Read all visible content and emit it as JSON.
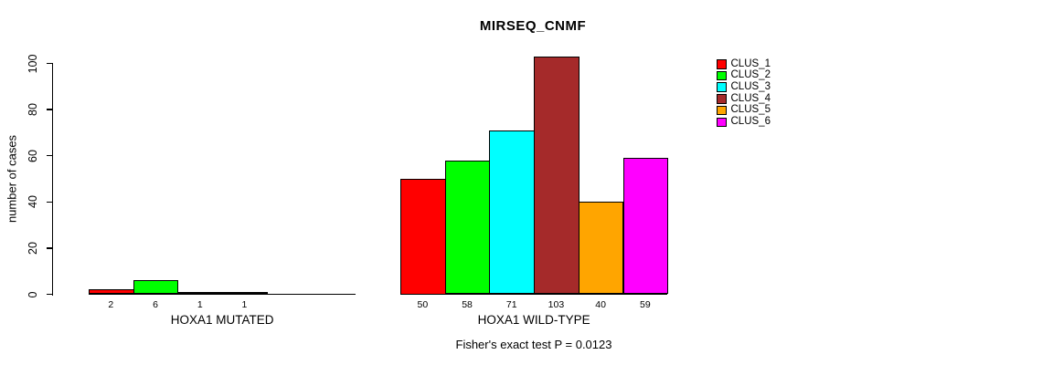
{
  "chart_data": {
    "type": "bar",
    "title": "MIRSEQ_CNMF",
    "ylabel": "number of cases",
    "xlabel": "",
    "ylim": [
      0,
      100
    ],
    "yticks": [
      0,
      20,
      40,
      60,
      80,
      100
    ],
    "grid": false,
    "legend_position": "right",
    "legend": [
      {
        "label": "CLUS_1",
        "color": "#FF0000"
      },
      {
        "label": "CLUS_2",
        "color": "#00FF00"
      },
      {
        "label": "CLUS_3",
        "color": "#00FFFF"
      },
      {
        "label": "CLUS_4",
        "color": "#A52A2A"
      },
      {
        "label": "CLUS_5",
        "color": "#FFA500"
      },
      {
        "label": "CLUS_6",
        "color": "#FF00FF"
      }
    ],
    "groups": [
      {
        "label": "HOXA1 MUTATED",
        "categories": [
          "CLUS_1",
          "CLUS_2",
          "CLUS_3",
          "CLUS_4"
        ],
        "values": [
          2,
          6,
          1,
          1
        ],
        "colors": [
          "#FF0000",
          "#00FF00",
          "#00FFFF",
          "#A52A2A"
        ],
        "slots": 6
      },
      {
        "label": "HOXA1 WILD-TYPE",
        "categories": [
          "CLUS_1",
          "CLUS_2",
          "CLUS_3",
          "CLUS_4",
          "CLUS_5",
          "CLUS_6"
        ],
        "values": [
          50,
          58,
          71,
          103,
          40,
          59
        ],
        "colors": [
          "#FF0000",
          "#00FF00",
          "#00FFFF",
          "#A52A2A",
          "#FFA500",
          "#FF00FF"
        ],
        "slots": 6
      }
    ],
    "annotation": "Fisher's exact test P = 0.0123"
  }
}
